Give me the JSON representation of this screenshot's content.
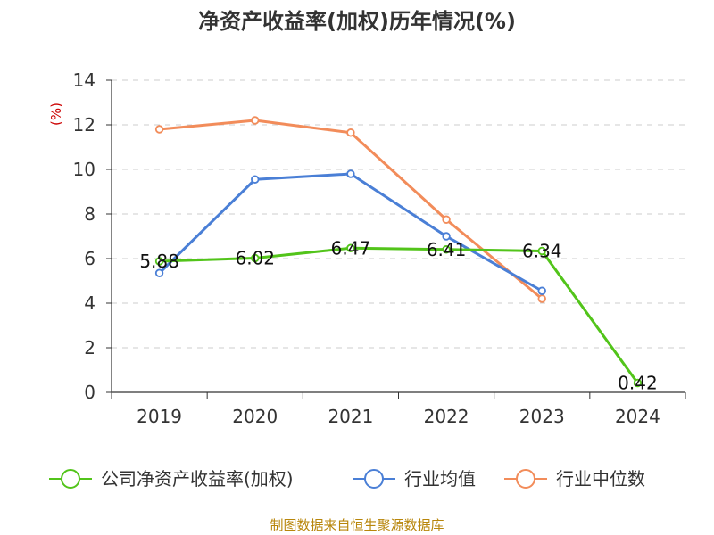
{
  "chart_data": {
    "type": "line",
    "title": "净资产收益率(加权)历年情况(%)",
    "ylabel": "(%)",
    "categories": [
      "2019",
      "2020",
      "2021",
      "2022",
      "2023",
      "2024"
    ],
    "ylim": [
      0,
      14
    ],
    "yticks": [
      0,
      2,
      4,
      6,
      8,
      10,
      12,
      14
    ],
    "grid": true,
    "legend_position": "bottom",
    "series": [
      {
        "name": "公司净资产收益率(加权)",
        "color": "#52c41a",
        "values": [
          5.88,
          6.02,
          6.47,
          6.41,
          6.34,
          0.42
        ],
        "labels": [
          "5.88",
          "6.02",
          "6.47",
          "6.41",
          "6.34",
          "0.42"
        ]
      },
      {
        "name": "行业均值",
        "color": "#4a7fd6",
        "values": [
          5.35,
          9.55,
          9.8,
          7.0,
          4.55,
          null
        ]
      },
      {
        "name": "行业中位数",
        "color": "#f28c5a",
        "values": [
          11.8,
          12.2,
          11.65,
          7.75,
          4.2,
          null
        ]
      }
    ]
  },
  "source": "制图数据来自恒生聚源数据库"
}
